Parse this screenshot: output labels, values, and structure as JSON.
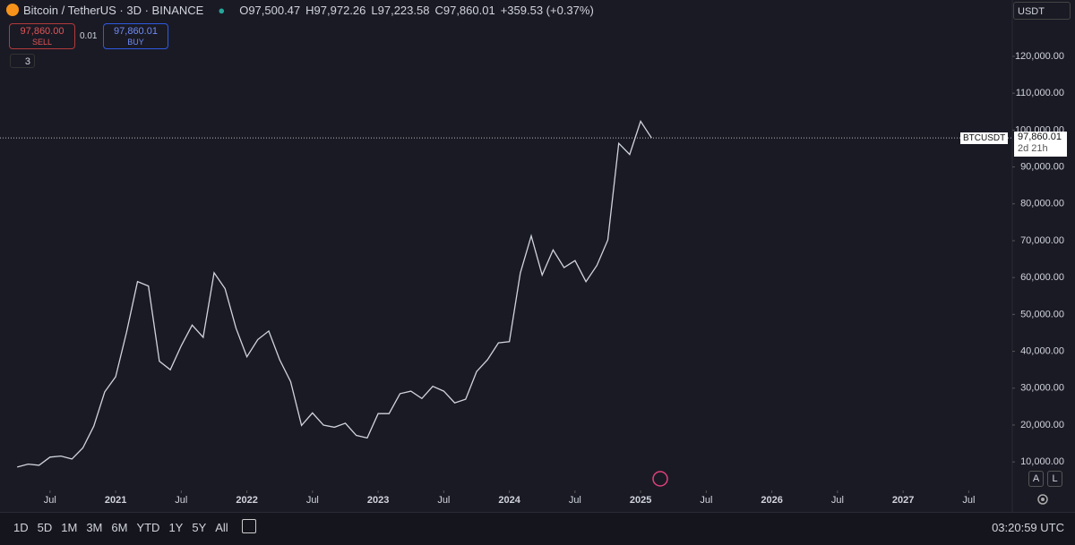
{
  "chart_data": {
    "type": "line",
    "title": "Bitcoin / TetherUS · 3D · BINANCE",
    "x": [
      "2020-04",
      "2020-05",
      "2020-06",
      "2020-07",
      "2020-08",
      "2020-09",
      "2020-10",
      "2020-11",
      "2020-12",
      "2021-01",
      "2021-02",
      "2021-03",
      "2021-04",
      "2021-05",
      "2021-06",
      "2021-07",
      "2021-08",
      "2021-09",
      "2021-10",
      "2021-11",
      "2021-12",
      "2022-01",
      "2022-02",
      "2022-03",
      "2022-04",
      "2022-05",
      "2022-06",
      "2022-07",
      "2022-08",
      "2022-09",
      "2022-10",
      "2022-11",
      "2022-12",
      "2023-01",
      "2023-02",
      "2023-03",
      "2023-04",
      "2023-05",
      "2023-06",
      "2023-07",
      "2023-08",
      "2023-09",
      "2023-10",
      "2023-11",
      "2023-12",
      "2024-01",
      "2024-02",
      "2024-03",
      "2024-04",
      "2024-05",
      "2024-06",
      "2024-07",
      "2024-08",
      "2024-09",
      "2024-10",
      "2024-11",
      "2024-12",
      "2025-01",
      "2025-02"
    ],
    "series": [
      {
        "name": "BTCUSDT",
        "color": "#d1d4dc",
        "values": [
          8600,
          9400,
          9100,
          11300,
          11600,
          10800,
          13800,
          19700,
          29000,
          33100,
          45200,
          58900,
          57700,
          37300,
          35000,
          41500,
          47100,
          43800,
          61300,
          57000,
          46300,
          38500,
          43200,
          45500,
          37700,
          31800,
          19900,
          23300,
          20000,
          19400,
          20500,
          17200,
          16500,
          23100,
          23100,
          28500,
          29200,
          27200,
          30500,
          29200,
          26000,
          27000,
          34500,
          37700,
          42300,
          42600,
          61200,
          71300,
          60700,
          67500,
          62700,
          64600,
          58900,
          63300,
          70200,
          96400,
          93400,
          102400,
          97860.01
        ]
      }
    ],
    "xlim": [
      "2020-03",
      "2027-10"
    ],
    "xticks": [
      {
        "value": "2020-07",
        "label": "Jul"
      },
      {
        "value": "2021-01",
        "label": "2021"
      },
      {
        "value": "2021-07",
        "label": "Jul"
      },
      {
        "value": "2022-01",
        "label": "2022"
      },
      {
        "value": "2022-07",
        "label": "Jul"
      },
      {
        "value": "2023-01",
        "label": "2023"
      },
      {
        "value": "2023-07",
        "label": "Jul"
      },
      {
        "value": "2024-01",
        "label": "2024"
      },
      {
        "value": "2024-07",
        "label": "Jul"
      },
      {
        "value": "2025-01",
        "label": "2025"
      },
      {
        "value": "2025-07",
        "label": "Jul"
      },
      {
        "value": "2026-01",
        "label": "2026"
      },
      {
        "value": "2026-07",
        "label": "Jul"
      },
      {
        "value": "2027-01",
        "label": "2027"
      },
      {
        "value": "2027-07",
        "label": "Jul"
      }
    ],
    "ylim": [
      3000,
      128000
    ],
    "yticks": [
      {
        "value": 10000,
        "label": "10,000.00"
      },
      {
        "value": 20000,
        "label": "20,000.00"
      },
      {
        "value": 30000,
        "label": "30,000.00"
      },
      {
        "value": 40000,
        "label": "40,000.00"
      },
      {
        "value": 50000,
        "label": "50,000.00"
      },
      {
        "value": 60000,
        "label": "60,000.00"
      },
      {
        "value": 70000,
        "label": "70,000.00"
      },
      {
        "value": 80000,
        "label": "80,000.00"
      },
      {
        "value": 90000,
        "label": "90,000.00"
      },
      {
        "value": 100000,
        "label": "100,000.00"
      },
      {
        "value": 110000,
        "label": "110,000.00"
      },
      {
        "value": 120000,
        "label": "120,000.00"
      }
    ]
  },
  "ui": {
    "ohlc": [
      {
        "key": "O",
        "value": "97,500.47"
      },
      {
        "key": "H",
        "value": "97,972.26"
      },
      {
        "key": "L",
        "value": "97,223.58"
      },
      {
        "key": "C",
        "value": "97,860.01"
      }
    ],
    "change": "+359.53 (+0.37%)",
    "sell": {
      "price": "97,860.00",
      "label": "SELL"
    },
    "spread": "0.01",
    "buy": {
      "price": "97,860.01",
      "label": "BUY"
    },
    "indicators": "3",
    "currency": "USDT",
    "price_label": {
      "price": "97,860.01",
      "countdown": "2d 21h"
    },
    "scale_buttons": [
      "A",
      "L"
    ],
    "ranges": [
      "1D",
      "5D",
      "1M",
      "3M",
      "6M",
      "YTD",
      "1Y",
      "5Y",
      "All"
    ],
    "clock": "03:20:59 UTC"
  }
}
